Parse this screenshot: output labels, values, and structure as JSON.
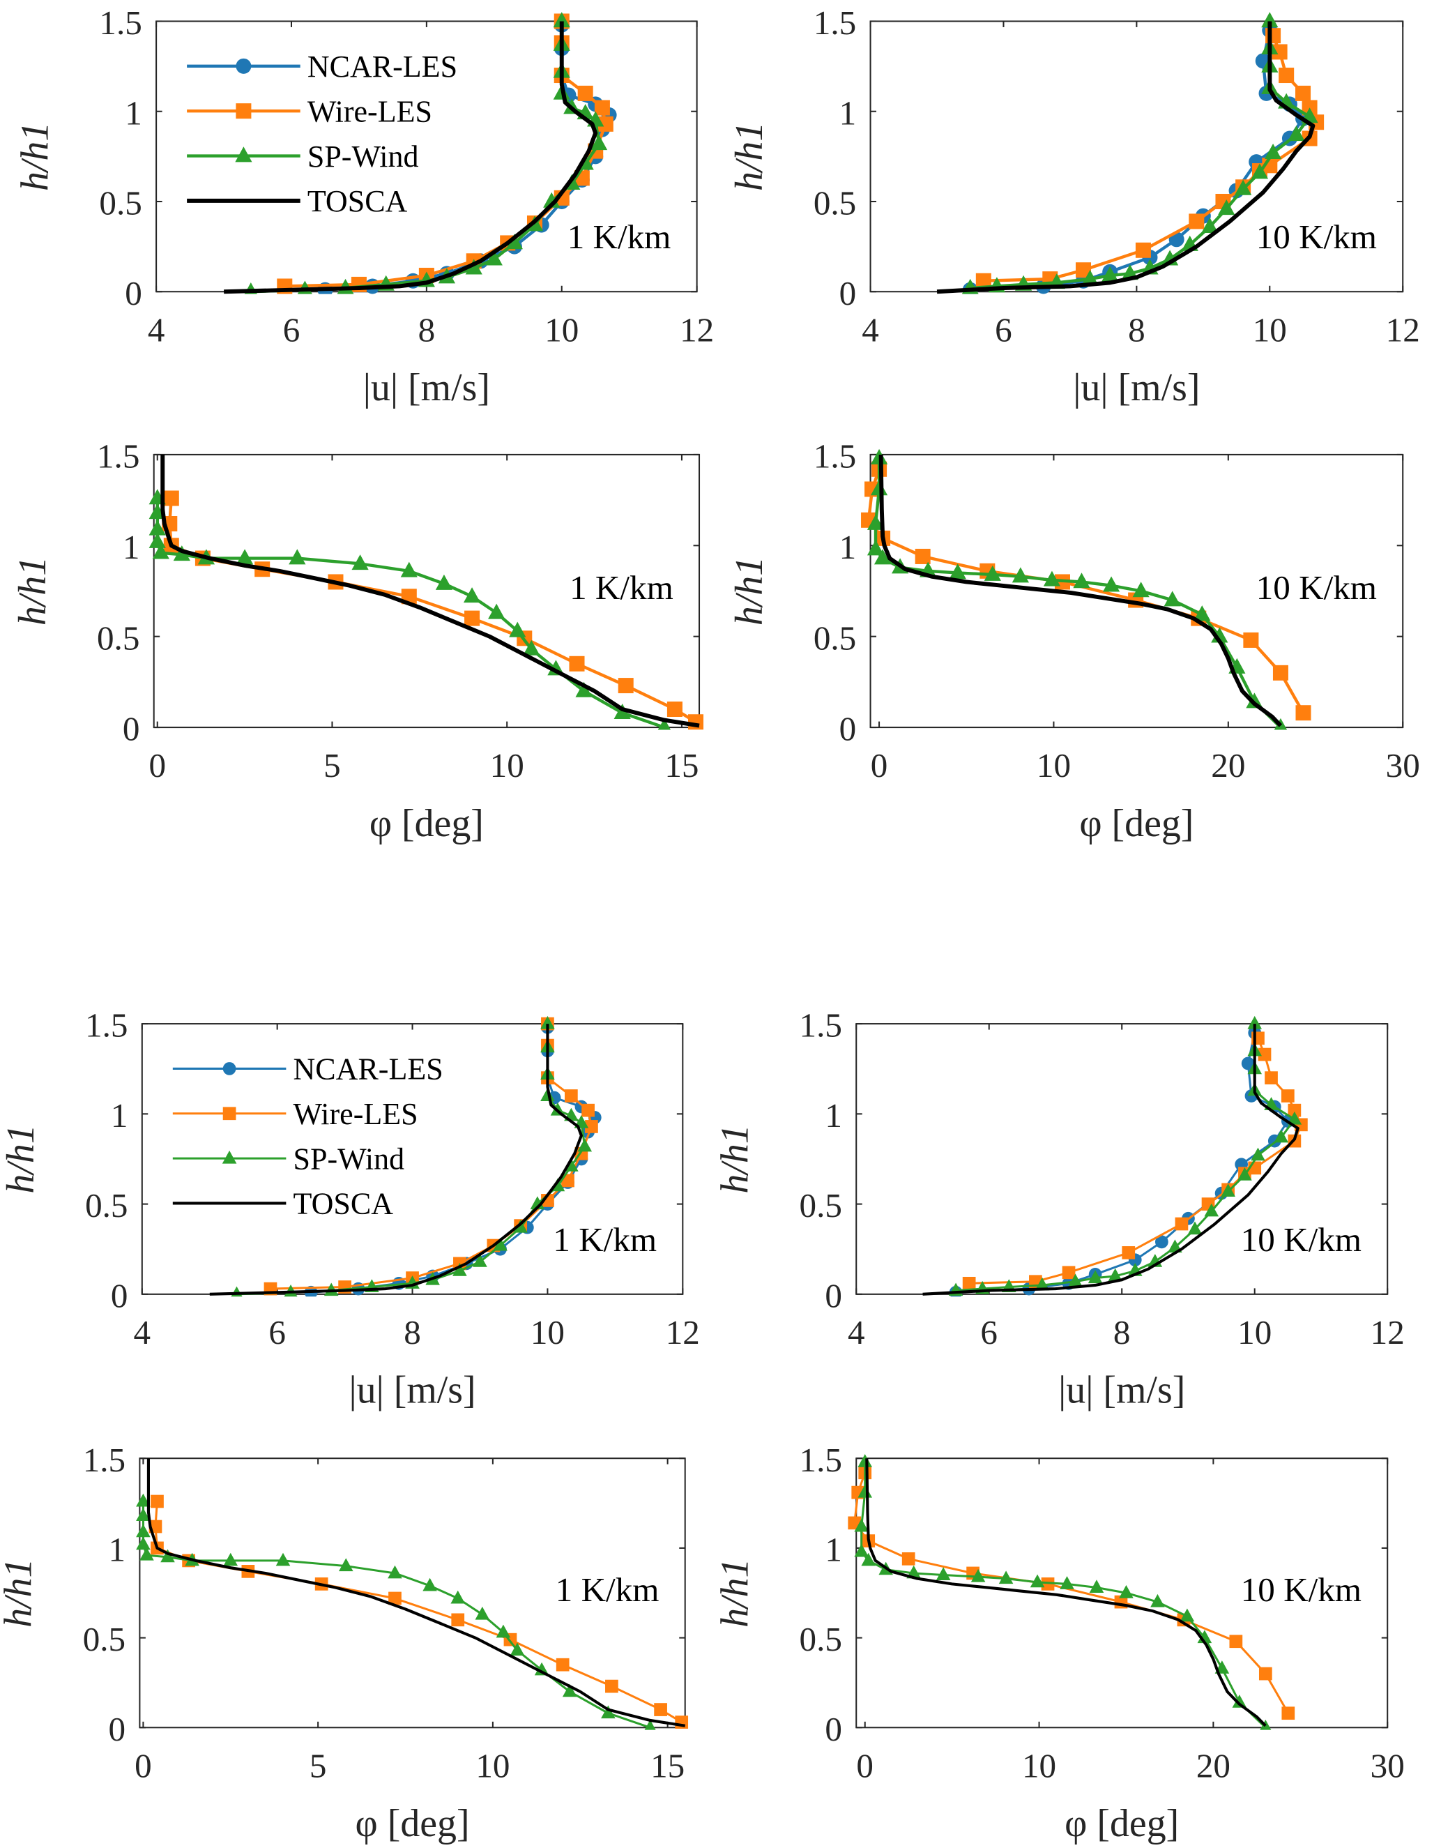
{
  "colors": {
    "NCAR-LES": "#1f77b4",
    "Wire-LES": "#ff7f0e",
    "SP-Wind": "#2ca02c",
    "TOSCA": "#000000"
  },
  "legend": [
    "NCAR-LES",
    "Wire-LES",
    "SP-Wind",
    "TOSCA"
  ],
  "chart_data": [
    {
      "id": "speed-1K",
      "type": "line",
      "xlabel": "|u| [m/s]",
      "ylabel": "h/h1",
      "annotation": "1 K/km",
      "xlim": [
        4,
        12
      ],
      "ylim": [
        0,
        1.5
      ],
      "xticks": [
        "4",
        "6",
        "8",
        "10",
        "12"
      ],
      "yticks": [
        "0",
        "0.5",
        "1",
        "1.5"
      ],
      "legend": true,
      "series": [
        {
          "name": "NCAR-LES",
          "marker": "circle",
          "x": [
            6.5,
            7.2,
            7.8,
            8.3,
            8.8,
            9.3,
            9.7,
            10.0,
            10.3,
            10.5,
            10.6,
            10.7,
            10.5,
            10.1,
            10.0,
            10.0,
            10.0
          ],
          "y": [
            0.01,
            0.03,
            0.06,
            0.1,
            0.17,
            0.25,
            0.37,
            0.5,
            0.62,
            0.75,
            0.9,
            0.98,
            1.04,
            1.09,
            1.2,
            1.35,
            1.48
          ]
        },
        {
          "name": "Wire-LES",
          "marker": "square",
          "x": [
            5.9,
            7.0,
            8.0,
            8.7,
            9.2,
            9.6,
            10.0,
            10.3,
            10.5,
            10.65,
            10.6,
            10.35,
            10.0,
            10.0,
            10.0
          ],
          "y": [
            0.03,
            0.04,
            0.09,
            0.17,
            0.27,
            0.38,
            0.52,
            0.63,
            0.78,
            0.93,
            1.02,
            1.1,
            1.2,
            1.38,
            1.5
          ]
        },
        {
          "name": "SP-Wind",
          "marker": "triangle",
          "x": [
            5.4,
            6.2,
            6.8,
            7.4,
            8.0,
            8.3,
            8.7,
            9.0,
            9.3,
            9.6,
            9.85,
            10.15,
            10.35,
            10.55,
            10.5,
            10.35,
            10.15,
            10.0,
            10.0,
            10.0,
            10.0
          ],
          "y": [
            0.0,
            0.01,
            0.02,
            0.04,
            0.06,
            0.08,
            0.13,
            0.18,
            0.27,
            0.37,
            0.5,
            0.6,
            0.71,
            0.82,
            0.95,
            0.99,
            1.02,
            1.1,
            1.22,
            1.37,
            1.5
          ]
        },
        {
          "name": "TOSCA",
          "marker": "none",
          "x": [
            5.0,
            6.0,
            7.0,
            7.6,
            8.0,
            8.4,
            8.8,
            9.2,
            9.6,
            9.9,
            10.2,
            10.4,
            10.5,
            10.45,
            10.2,
            10.05,
            10.0,
            10.0
          ],
          "y": [
            0.0,
            0.01,
            0.02,
            0.03,
            0.05,
            0.1,
            0.17,
            0.27,
            0.39,
            0.5,
            0.65,
            0.78,
            0.88,
            0.93,
            1.0,
            1.05,
            1.15,
            1.5
          ]
        }
      ]
    },
    {
      "id": "speed-10K",
      "type": "line",
      "xlabel": "|u| [m/s]",
      "ylabel": "h/h1",
      "annotation": "10 K/km",
      "xlim": [
        4,
        12
      ],
      "ylim": [
        0,
        1.5
      ],
      "xticks": [
        "4",
        "6",
        "8",
        "10",
        "12"
      ],
      "yticks": [
        "0",
        "0.5",
        "1",
        "1.5"
      ],
      "legend": false,
      "series": [
        {
          "name": "NCAR-LES",
          "marker": "circle",
          "x": [
            5.5,
            6.6,
            7.2,
            7.6,
            8.2,
            8.6,
            9.0,
            9.5,
            9.8,
            10.3,
            10.5,
            10.3,
            9.95,
            9.9,
            10.0
          ],
          "y": [
            0.01,
            0.03,
            0.06,
            0.11,
            0.19,
            0.29,
            0.42,
            0.56,
            0.72,
            0.85,
            0.96,
            1.04,
            1.1,
            1.28,
            1.45
          ]
        },
        {
          "name": "Wire-LES",
          "marker": "square",
          "x": [
            5.7,
            6.7,
            7.2,
            8.1,
            8.9,
            9.3,
            9.6,
            9.85,
            10.0,
            10.6,
            10.7,
            10.6,
            10.5,
            10.25,
            10.15,
            10.05
          ],
          "y": [
            0.06,
            0.07,
            0.12,
            0.23,
            0.39,
            0.5,
            0.58,
            0.67,
            0.7,
            0.85,
            0.94,
            1.02,
            1.1,
            1.2,
            1.33,
            1.42
          ]
        },
        {
          "name": "SP-Wind",
          "marker": "triangle",
          "x": [
            5.5,
            5.9,
            6.3,
            6.8,
            7.3,
            7.6,
            7.9,
            8.2,
            8.5,
            8.8,
            9.1,
            9.35,
            9.6,
            9.85,
            10.05,
            10.4,
            10.6,
            10.25,
            10.0,
            10.0,
            10.0,
            10.0
          ],
          "y": [
            0.02,
            0.03,
            0.04,
            0.05,
            0.07,
            0.09,
            0.1,
            0.13,
            0.18,
            0.26,
            0.36,
            0.46,
            0.57,
            0.66,
            0.77,
            0.87,
            0.97,
            1.05,
            1.13,
            1.25,
            1.35,
            1.5
          ]
        },
        {
          "name": "TOSCA",
          "marker": "none",
          "x": [
            5.0,
            6.0,
            7.0,
            7.6,
            8.0,
            8.4,
            8.9,
            9.4,
            9.9,
            10.2,
            10.4,
            10.6,
            10.65,
            10.4,
            10.1,
            10.0,
            10.0
          ],
          "y": [
            0.0,
            0.02,
            0.03,
            0.05,
            0.08,
            0.14,
            0.25,
            0.39,
            0.55,
            0.68,
            0.78,
            0.86,
            0.92,
            0.98,
            1.06,
            1.12,
            1.5
          ]
        }
      ]
    },
    {
      "id": "direction-1K",
      "type": "line",
      "xlabel": "φ [deg]",
      "ylabel": "h/h1",
      "annotation": "1 K/km",
      "xlim": [
        -0.1,
        15.5
      ],
      "ylim": [
        0,
        1.5
      ],
      "xticks": [
        "0",
        "5",
        "10",
        "15"
      ],
      "xtickvals": [
        0,
        5,
        10,
        15
      ],
      "yticks": [
        "0",
        "0.5",
        "1",
        "1.5"
      ],
      "legend": false,
      "series": [
        {
          "name": "Wire-LES",
          "marker": "square",
          "x": [
            15.4,
            14.8,
            13.4,
            12.0,
            10.5,
            9.0,
            7.2,
            5.1,
            3.0,
            1.3,
            0.4,
            0.35,
            0.4
          ],
          "y": [
            0.03,
            0.1,
            0.23,
            0.35,
            0.49,
            0.6,
            0.72,
            0.8,
            0.87,
            0.93,
            1.0,
            1.12,
            1.26
          ]
        },
        {
          "name": "SP-Wind",
          "marker": "triangle",
          "x": [
            14.5,
            13.3,
            12.2,
            11.4,
            10.7,
            10.3,
            9.7,
            9.0,
            8.2,
            7.2,
            5.8,
            4.0,
            2.5,
            1.4,
            0.7,
            0.1,
            0.0,
            0.0,
            0.0,
            0.0
          ],
          "y": [
            0.0,
            0.08,
            0.2,
            0.32,
            0.43,
            0.53,
            0.63,
            0.72,
            0.79,
            0.86,
            0.9,
            0.93,
            0.93,
            0.93,
            0.95,
            0.96,
            1.02,
            1.09,
            1.18,
            1.26
          ]
        },
        {
          "name": "TOSCA",
          "marker": "none",
          "x": [
            15.5,
            14.5,
            13.3,
            12.5,
            11.5,
            10.5,
            9.5,
            8.5,
            7.5,
            6.5,
            5.5,
            4.5,
            3.5,
            2.5,
            1.5,
            0.7,
            0.4,
            0.3,
            0.2,
            0.15,
            0.15
          ],
          "y": [
            0.01,
            0.04,
            0.1,
            0.2,
            0.3,
            0.4,
            0.5,
            0.58,
            0.66,
            0.73,
            0.78,
            0.82,
            0.86,
            0.89,
            0.93,
            0.97,
            1.0,
            1.06,
            1.12,
            1.2,
            1.5
          ]
        }
      ]
    },
    {
      "id": "direction-10K",
      "type": "line",
      "xlabel": "φ [deg]",
      "ylabel": "h/h1",
      "annotation": "10 K/km",
      "xlim": [
        -0.5,
        30
      ],
      "ylim": [
        0,
        1.5
      ],
      "xticks": [
        "0",
        "10",
        "20",
        "30"
      ],
      "xtickvals": [
        0,
        10,
        20,
        30
      ],
      "yticks": [
        "0",
        "0.5",
        "1",
        "1.5"
      ],
      "legend": false,
      "series": [
        {
          "name": "Wire-LES",
          "marker": "square",
          "x": [
            24.3,
            23.0,
            21.3,
            18.3,
            14.7,
            10.5,
            6.2,
            2.5,
            0.2,
            -0.6,
            -0.4,
            0.0
          ],
          "y": [
            0.08,
            0.3,
            0.48,
            0.6,
            0.7,
            0.8,
            0.86,
            0.94,
            1.04,
            1.14,
            1.31,
            1.42
          ]
        },
        {
          "name": "SP-Wind",
          "marker": "triangle",
          "x": [
            23.0,
            21.5,
            20.5,
            19.5,
            18.5,
            16.8,
            15.0,
            13.3,
            11.6,
            9.9,
            8.1,
            6.5,
            4.5,
            2.8,
            1.2,
            0.2,
            -0.2,
            -0.2,
            0.0,
            0.0
          ],
          "y": [
            0.0,
            0.14,
            0.33,
            0.5,
            0.62,
            0.7,
            0.75,
            0.78,
            0.8,
            0.81,
            0.83,
            0.84,
            0.85,
            0.86,
            0.88,
            0.93,
            0.98,
            1.12,
            1.31,
            1.48
          ]
        },
        {
          "name": "TOSCA",
          "marker": "none",
          "x": [
            23.0,
            22.5,
            21.5,
            20.8,
            20.3,
            20.0,
            19.6,
            19.0,
            18.0,
            16.5,
            15.0,
            13.0,
            11.0,
            9.0,
            7.0,
            5.0,
            3.0,
            1.5,
            0.6,
            0.3,
            0.2,
            0.15,
            0.1
          ],
          "y": [
            0.01,
            0.06,
            0.13,
            0.2,
            0.3,
            0.38,
            0.46,
            0.54,
            0.6,
            0.65,
            0.68,
            0.71,
            0.74,
            0.76,
            0.78,
            0.8,
            0.83,
            0.87,
            0.93,
            1.0,
            1.05,
            1.2,
            1.5
          ]
        }
      ]
    }
  ],
  "panels": [
    {
      "chart": 0,
      "group": "top"
    },
    {
      "chart": 1,
      "group": "top"
    },
    {
      "chart": 2,
      "group": "top"
    },
    {
      "chart": 3,
      "group": "top"
    },
    {
      "chart": 0,
      "group": "bottom"
    },
    {
      "chart": 1,
      "group": "bottom"
    },
    {
      "chart": 2,
      "group": "bottom"
    },
    {
      "chart": 3,
      "group": "bottom"
    }
  ]
}
